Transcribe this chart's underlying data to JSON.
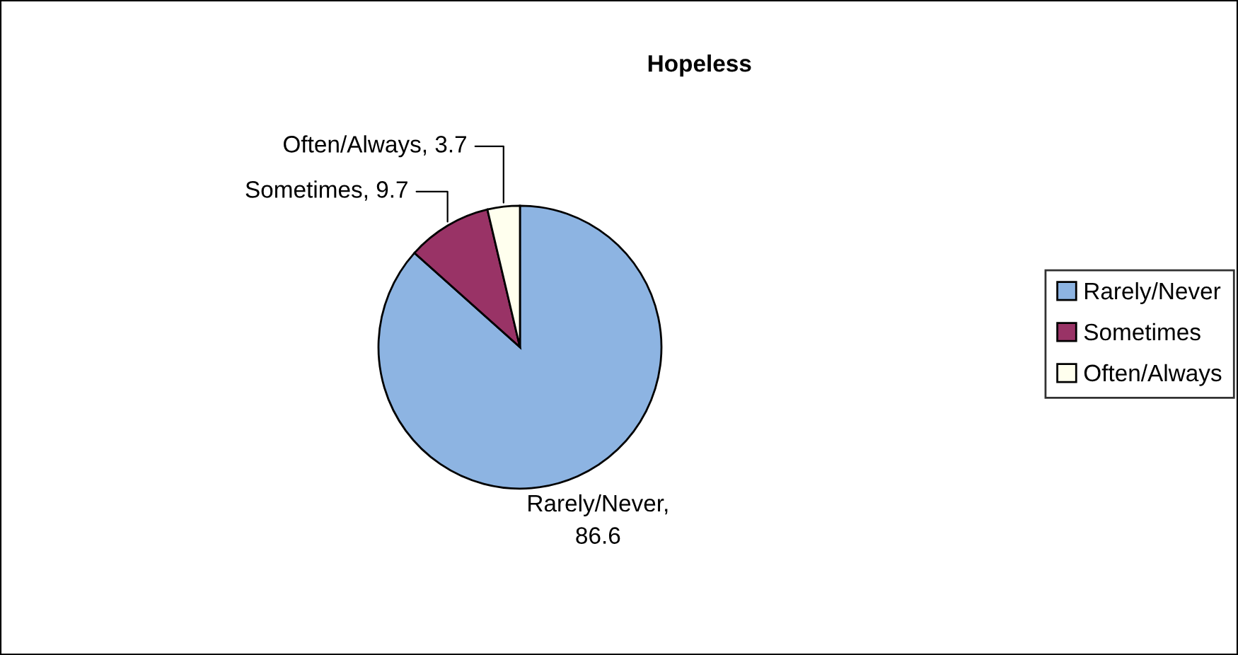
{
  "chart_data": {
    "type": "pie",
    "title": "Hopeless",
    "categories": [
      "Rarely/Never",
      "Sometimes",
      "Often/Always"
    ],
    "values": [
      86.6,
      9.7,
      3.7
    ],
    "colors": [
      "#8db4e2",
      "#993366",
      "#ffffee"
    ],
    "value_labels": [
      "Rarely/Never,\n86.6",
      "Sometimes, 9.7",
      "Often/Always, 3.7"
    ],
    "legend": "right"
  }
}
